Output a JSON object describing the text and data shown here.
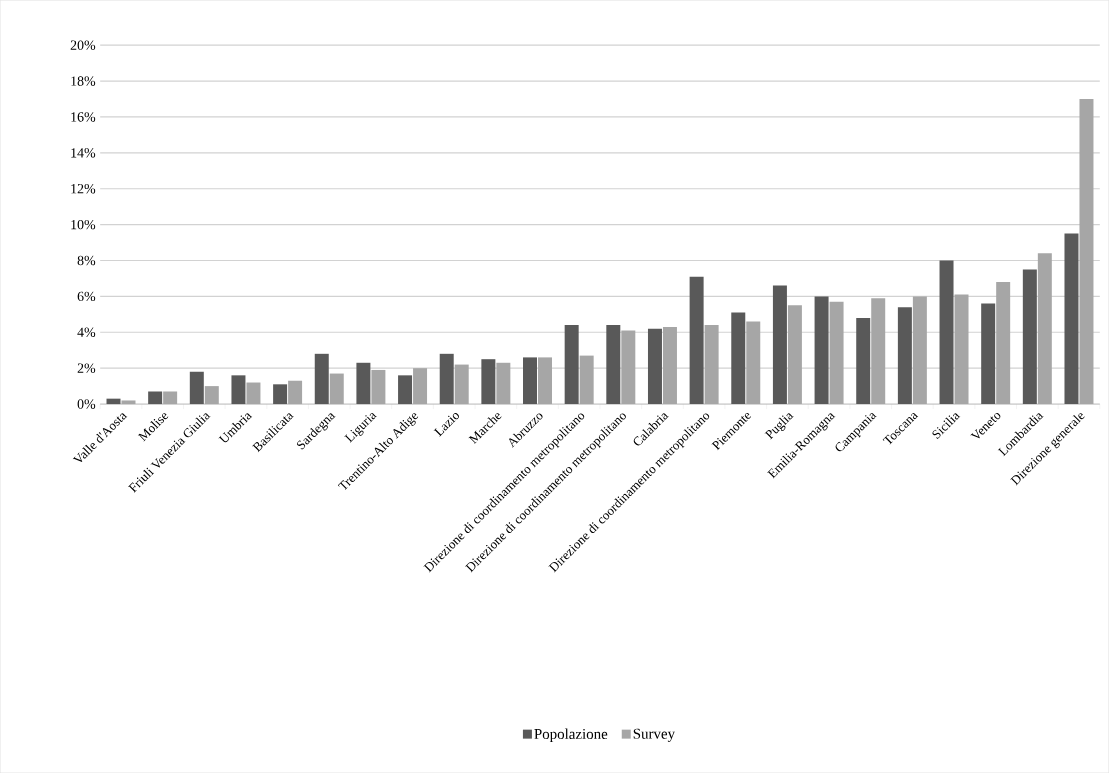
{
  "chart_data": {
    "type": "bar",
    "categories": [
      "Valle d'Aosta",
      "Molise",
      "Friuli Venezia Giulia",
      "Umbria",
      "Basilicata",
      "Sardegna",
      "Liguria",
      "Trentino-Alto Adige",
      "Lazio",
      "Marche",
      "Abruzzo",
      "Direzione di coordinamento metropolitano",
      "Direzione di coordinamento metropolitano",
      "Calabria",
      "Direzione di coordinamento metropolitano",
      "Piemonte",
      "Puglia",
      "Emilia-Romagna",
      "Campania",
      "Toscana",
      "Sicilia",
      "Veneto",
      "Lombardia",
      "Direzione generale"
    ],
    "series": [
      {
        "name": "Popolazione",
        "color": "#595959",
        "values": [
          0.3,
          0.7,
          1.8,
          1.6,
          1.1,
          2.8,
          2.3,
          1.6,
          2.8,
          2.5,
          2.6,
          4.4,
          4.4,
          4.2,
          7.1,
          5.1,
          6.6,
          6.0,
          4.8,
          5.4,
          8.0,
          5.6,
          7.5,
          9.5
        ]
      },
      {
        "name": "Survey",
        "color": "#a6a6a6",
        "values": [
          0.2,
          0.7,
          1.0,
          1.2,
          1.3,
          1.7,
          1.9,
          2.0,
          2.2,
          2.3,
          2.6,
          2.7,
          4.1,
          4.3,
          4.4,
          4.6,
          5.5,
          5.7,
          5.9,
          6.0,
          6.1,
          6.8,
          8.4,
          17.0
        ]
      }
    ],
    "ylim": [
      0,
      20
    ],
    "yticks": [
      {
        "value": 0,
        "label": "0%"
      },
      {
        "value": 2,
        "label": "2%"
      },
      {
        "value": 4,
        "label": "4%"
      },
      {
        "value": 6,
        "label": "6%"
      },
      {
        "value": 8,
        "label": "8%"
      },
      {
        "value": 10,
        "label": "10%"
      },
      {
        "value": 12,
        "label": "12%"
      },
      {
        "value": 14,
        "label": "14%"
      },
      {
        "value": 16,
        "label": "16%"
      },
      {
        "value": 18,
        "label": "18%"
      },
      {
        "value": 20,
        "label": "20%"
      }
    ],
    "grid": "y",
    "legend": "bottom"
  }
}
